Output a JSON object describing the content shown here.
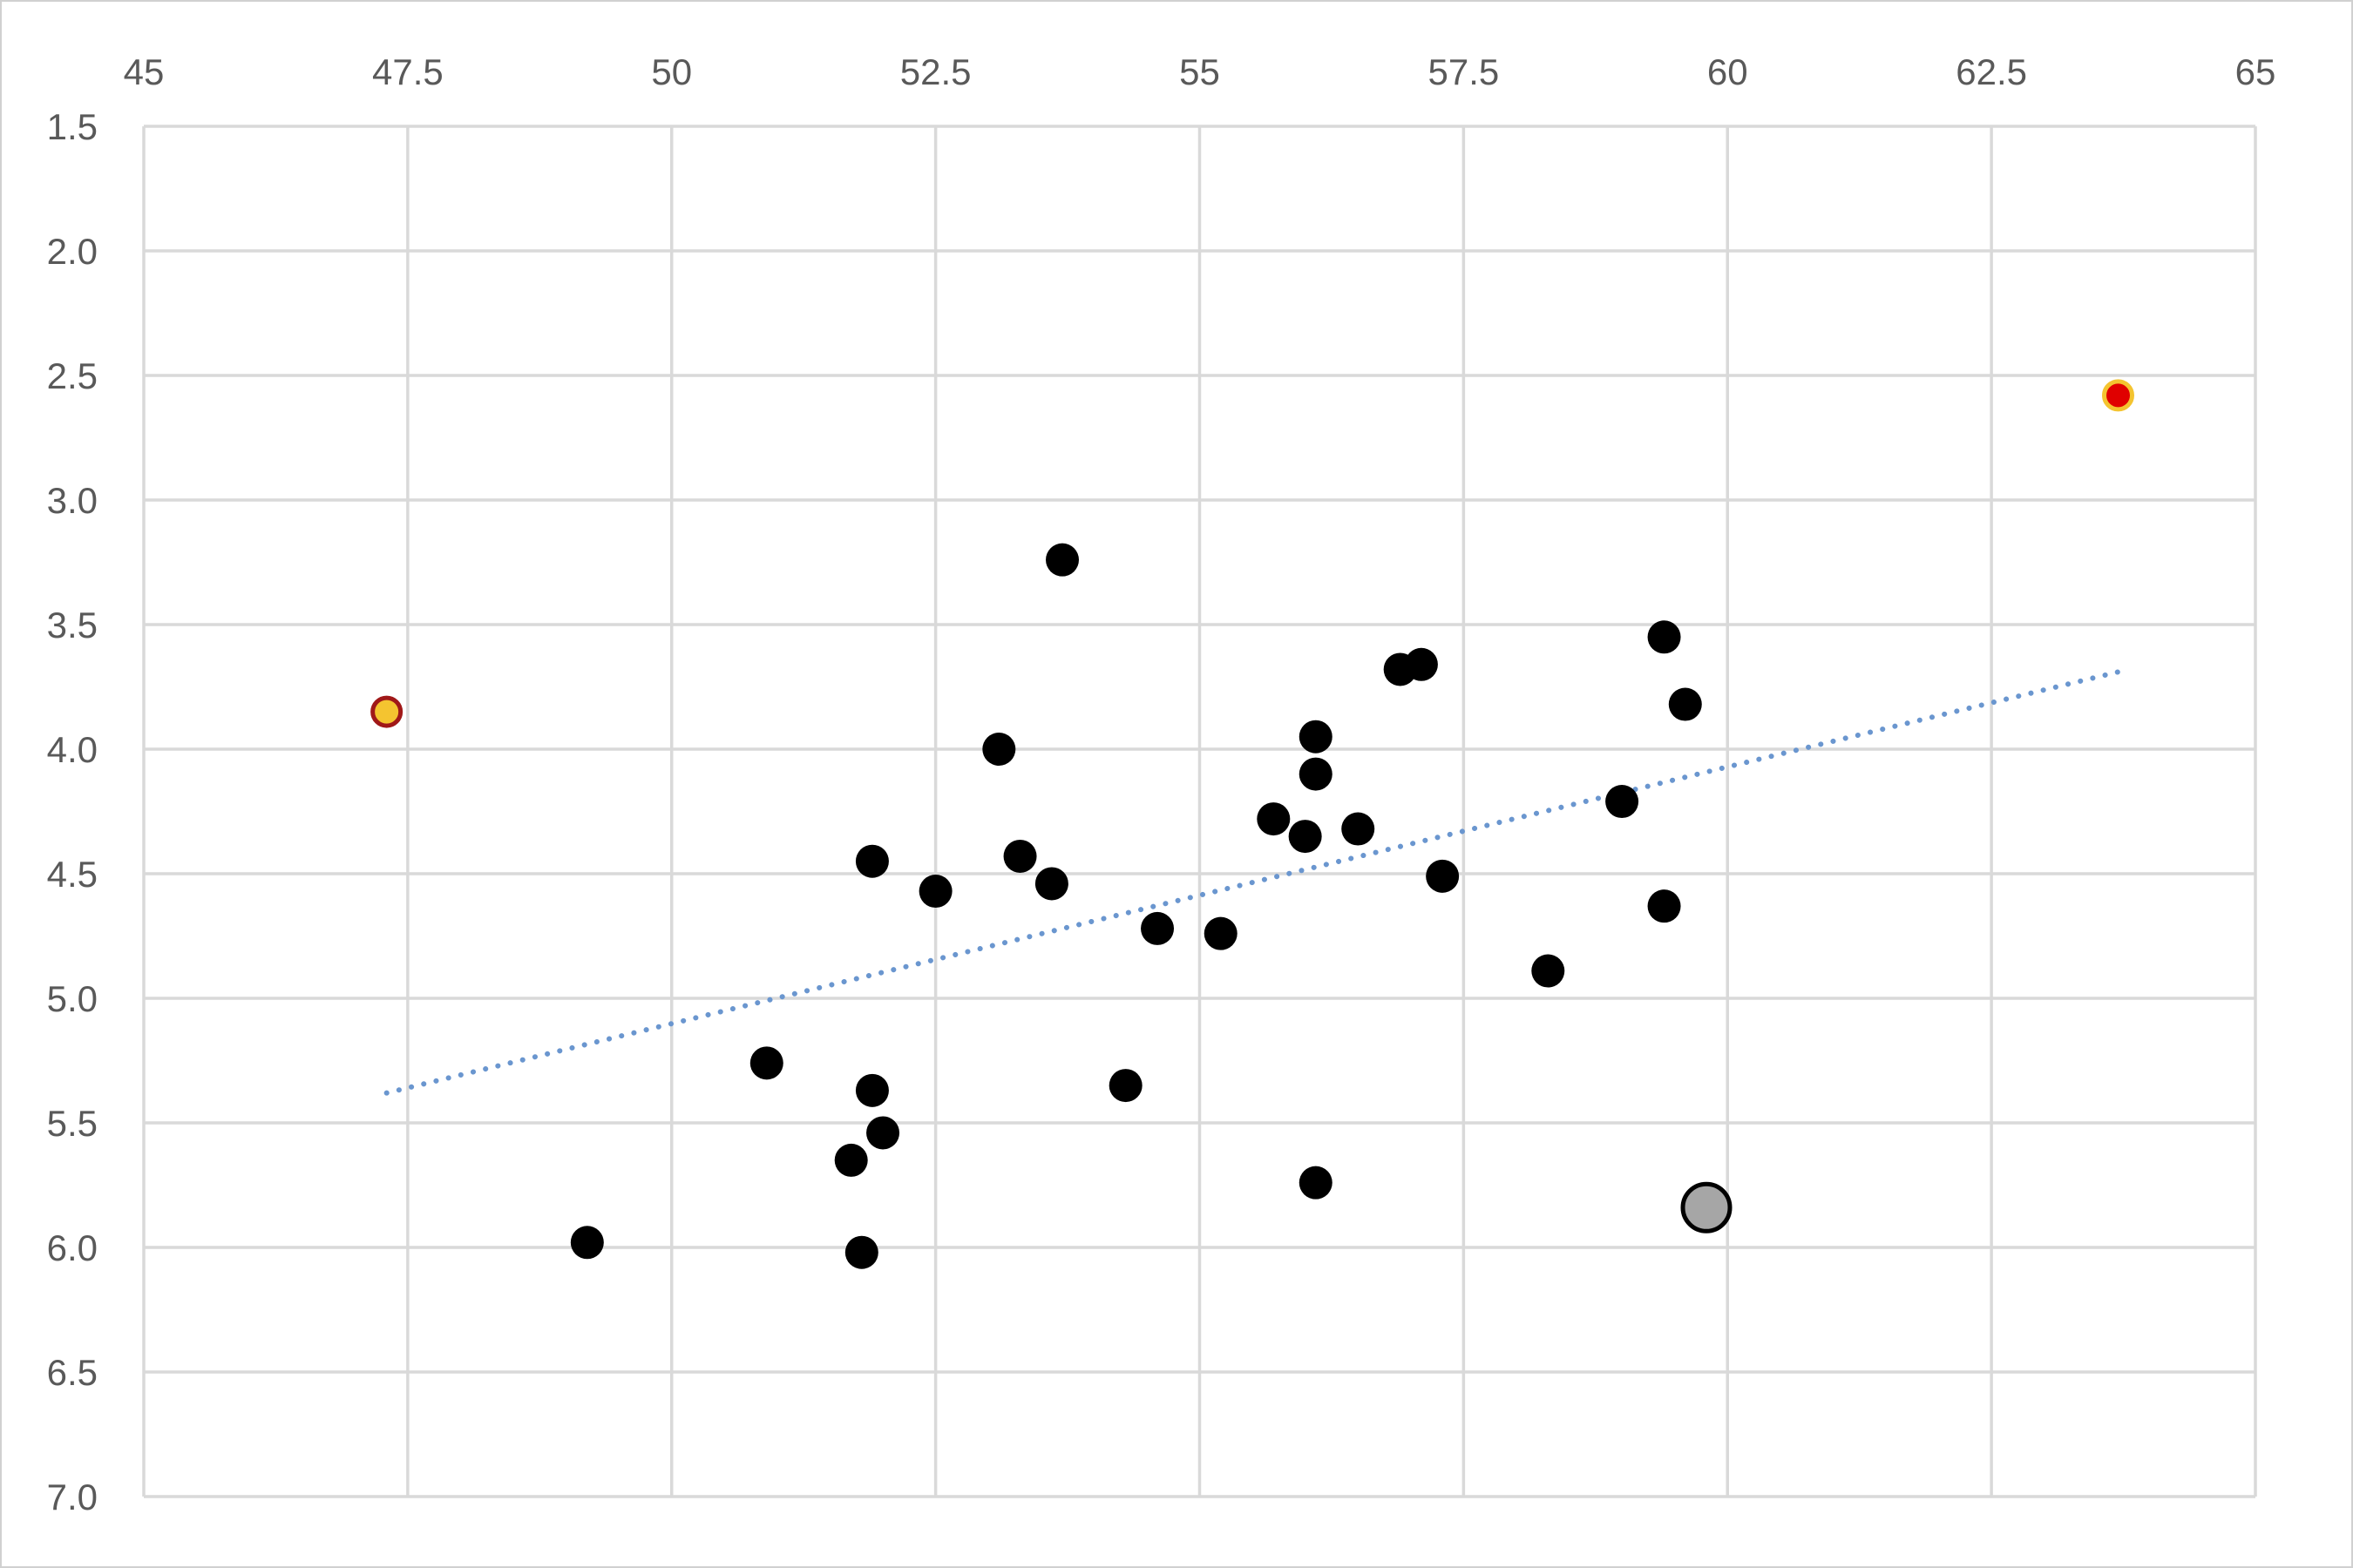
{
  "chart_data": {
    "type": "scatter",
    "title": "",
    "xlabel": "",
    "ylabel": "",
    "xlim": [
      45,
      65
    ],
    "ylim": [
      1.5,
      7.0
    ],
    "y_reversed": true,
    "x_axis_position": "top",
    "x_ticks": [
      "45",
      "47.5",
      "50",
      "52.5",
      "55",
      "57.5",
      "60",
      "62.5",
      "65"
    ],
    "y_ticks": [
      "1.5",
      "2.0",
      "2.5",
      "3.0",
      "3.5",
      "4.0",
      "4.5",
      "5.0",
      "5.5",
      "6.0",
      "6.5",
      "7.0"
    ],
    "grid": true,
    "legend": "none",
    "series": [
      {
        "color": "#000000",
        "marker": "circle",
        "points": [
          {
            "x": 53.7,
            "y": 3.24
          },
          {
            "x": 59.4,
            "y": 3.55
          },
          {
            "x": 57.1,
            "y": 3.66
          },
          {
            "x": 56.9,
            "y": 3.68
          },
          {
            "x": 59.6,
            "y": 3.82
          },
          {
            "x": 56.1,
            "y": 3.95
          },
          {
            "x": 53.1,
            "y": 4.0
          },
          {
            "x": 56.1,
            "y": 4.1
          },
          {
            "x": 59.0,
            "y": 4.21
          },
          {
            "x": 55.7,
            "y": 4.28
          },
          {
            "x": 56.5,
            "y": 4.32
          },
          {
            "x": 56.0,
            "y": 4.35
          },
          {
            "x": 53.3,
            "y": 4.43
          },
          {
            "x": 51.9,
            "y": 4.45
          },
          {
            "x": 57.3,
            "y": 4.51
          },
          {
            "x": 53.6,
            "y": 4.54
          },
          {
            "x": 52.5,
            "y": 4.57
          },
          {
            "x": 59.4,
            "y": 4.63
          },
          {
            "x": 54.6,
            "y": 4.72
          },
          {
            "x": 55.2,
            "y": 4.74
          },
          {
            "x": 58.3,
            "y": 4.89
          },
          {
            "x": 50.9,
            "y": 5.26
          },
          {
            "x": 54.3,
            "y": 5.35
          },
          {
            "x": 51.9,
            "y": 5.37
          },
          {
            "x": 52.0,
            "y": 5.54
          },
          {
            "x": 51.7,
            "y": 5.65
          },
          {
            "x": 56.1,
            "y": 5.74
          },
          {
            "x": 49.2,
            "y": 5.98
          },
          {
            "x": 51.8,
            "y": 6.02
          }
        ]
      },
      {
        "color": "#a6a6a6",
        "edge_color": "#000000",
        "marker": "circle-large",
        "points": [
          {
            "x": 59.8,
            "y": 5.84
          }
        ]
      },
      {
        "color": "#f4c430",
        "edge_color": "#a01818",
        "marker": "circle-small",
        "points": [
          {
            "x": 47.3,
            "y": 3.85
          }
        ]
      },
      {
        "color": "#e00000",
        "edge_color": "#f4c430",
        "marker": "circle-small",
        "points": [
          {
            "x": 63.7,
            "y": 2.58
          }
        ]
      }
    ],
    "trendline": {
      "style": "dotted",
      "color": "#6a96cf",
      "from": {
        "x": 47.3,
        "y": 5.38
      },
      "to": {
        "x": 63.7,
        "y": 3.69
      }
    }
  }
}
